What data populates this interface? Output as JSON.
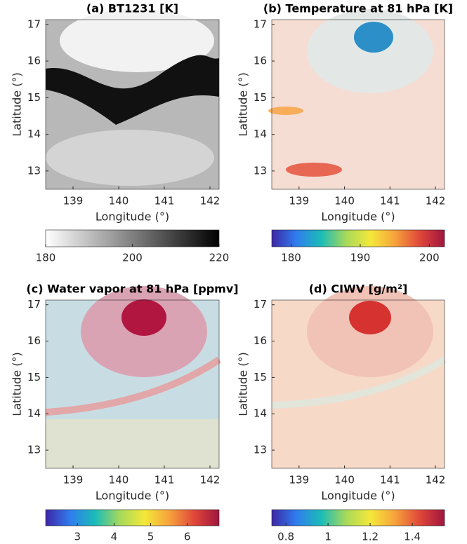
{
  "chart_data": [
    {
      "type": "image",
      "title": "(a) BT1231 [K]",
      "x_label": "Longitude (°)",
      "y_label": "Latitude (°)",
      "xlim": [
        138.4,
        142.2
      ],
      "xticks": [
        139,
        140,
        141,
        142
      ],
      "ylim": [
        12.5,
        17.13
      ],
      "yticks": [
        13,
        14,
        15,
        16,
        17
      ],
      "clim": [
        180,
        220
      ],
      "cticks": [
        180,
        200,
        220
      ],
      "colormap": [
        "#ffffff",
        "#000000"
      ]
    },
    {
      "type": "image",
      "title": "(b) Temperature at 81 hPa [K]",
      "x_label": "Longitude (°)",
      "y_label": "Latitude (°)",
      "xlim": [
        138.4,
        142.2
      ],
      "xticks": [
        139,
        140,
        141,
        142
      ],
      "ylim": [
        12.5,
        17.13
      ],
      "yticks": [
        13,
        14,
        15,
        16,
        17
      ],
      "clim": [
        177.2,
        202.2
      ],
      "cticks": [
        180,
        190,
        200
      ],
      "colormap": [
        "#3e26a8",
        "#2f7dee",
        "#1bbcb8",
        "#a6d95a",
        "#f5e83a",
        "#f7a13c",
        "#e0473a",
        "#a0153e"
      ]
    },
    {
      "type": "image",
      "title": "(c) Water vapor at 81 hPa [ppmv]",
      "x_label": "Longitude (°)",
      "y_label": "Latitude (°)",
      "xlim": [
        138.4,
        142.2
      ],
      "xticks": [
        139,
        140,
        141,
        142
      ],
      "ylim": [
        12.5,
        17.13
      ],
      "yticks": [
        13,
        14,
        15,
        16,
        17
      ],
      "clim": [
        2.13,
        6.87
      ],
      "cticks": [
        3,
        4,
        5,
        6
      ],
      "colormap": [
        "#3e26a8",
        "#2f7dee",
        "#1bbcb8",
        "#a6d95a",
        "#f5e83a",
        "#f7a13c",
        "#e0473a",
        "#a0153e"
      ]
    },
    {
      "type": "image",
      "title": "(d) CIWV [g/m²]",
      "x_label": "Longitude (°)",
      "y_label": "Latitude (°)",
      "xlim": [
        138.4,
        142.2
      ],
      "xticks": [
        139,
        140,
        141,
        142
      ],
      "ylim": [
        12.5,
        17.13
      ],
      "yticks": [
        13,
        14,
        15,
        16,
        17
      ],
      "clim": [
        0.733,
        1.553
      ],
      "cticks": [
        0.8,
        1,
        1.2,
        1.4
      ],
      "colormap": [
        "#3e26a8",
        "#2f7dee",
        "#1bbcb8",
        "#a6d95a",
        "#f5e83a",
        "#f7a13c",
        "#e0473a",
        "#a0153e"
      ]
    }
  ]
}
